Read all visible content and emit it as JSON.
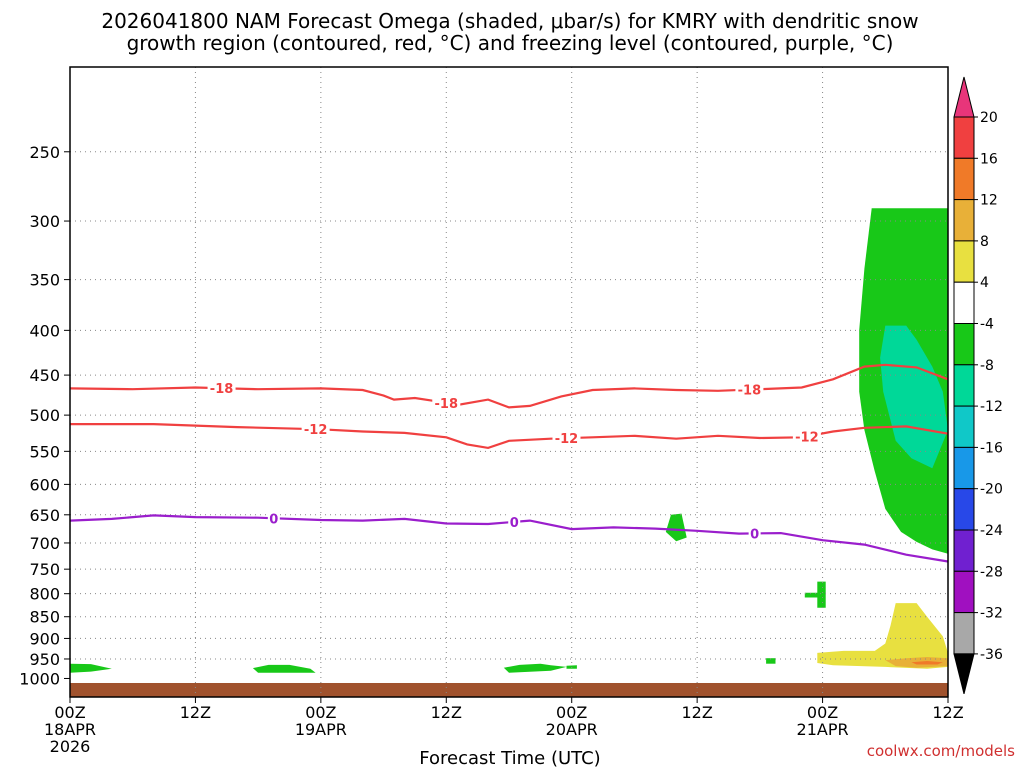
{
  "chart_data": {
    "type": "time-height-contour",
    "title_line1": "2026041800 NAM Forecast Omega (shaded, μbar/s) for KMRY with dendritic snow",
    "title_line2": "growth region (contoured, red, °C) and freezing level (contoured, purple, °C)",
    "xlabel": "Forecast Time (UTC)",
    "credit": "coolwx.com/models",
    "x_range_hours": [
      0,
      84
    ],
    "y_range_hpa": [
      1050,
      200
    ],
    "y_ticks": [
      250,
      300,
      350,
      400,
      450,
      500,
      550,
      600,
      650,
      700,
      750,
      800,
      850,
      900,
      950,
      1000
    ],
    "x_ticks": [
      {
        "hour": 0,
        "l1": "00Z",
        "l2": "18APR",
        "l3": "2026"
      },
      {
        "hour": 12,
        "l1": "12Z",
        "l2": "",
        "l3": ""
      },
      {
        "hour": 24,
        "l1": "00Z",
        "l2": "19APR",
        "l3": ""
      },
      {
        "hour": 36,
        "l1": "12Z",
        "l2": "",
        "l3": ""
      },
      {
        "hour": 48,
        "l1": "00Z",
        "l2": "20APR",
        "l3": ""
      },
      {
        "hour": 60,
        "l1": "12Z",
        "l2": "",
        "l3": ""
      },
      {
        "hour": 72,
        "l1": "00Z",
        "l2": "21APR",
        "l3": ""
      },
      {
        "hour": 84,
        "l1": "12Z",
        "l2": "",
        "l3": ""
      }
    ],
    "terrain": {
      "surface_hpa": 1012,
      "color": "#a0522d"
    },
    "colorbar": {
      "labels": [
        "20",
        "16",
        "12",
        "8",
        "4",
        "-4",
        "-8",
        "-12",
        "-16",
        "-20",
        "-24",
        "-28",
        "-32",
        "-36"
      ],
      "colors": [
        "#e8357a",
        "#f04040",
        "#f07a28",
        "#e8b038",
        "#e8e040",
        "#ffffff",
        "#18c818",
        "#00d898",
        "#10c8c8",
        "#1898e8",
        "#2848e8",
        "#7020d0",
        "#a010c0",
        "#a8a8a8",
        "#000000"
      ]
    },
    "series": [
      {
        "name": "-18 isotherm",
        "color": "#f04040",
        "label": "-18",
        "points": [
          [
            0,
            466
          ],
          [
            6,
            467
          ],
          [
            12,
            465
          ],
          [
            18,
            467
          ],
          [
            24,
            466
          ],
          [
            28,
            468
          ],
          [
            30,
            475
          ],
          [
            31,
            480
          ],
          [
            33,
            478
          ],
          [
            35,
            482
          ],
          [
            37,
            487
          ],
          [
            40,
            480
          ],
          [
            42,
            490
          ],
          [
            44,
            488
          ],
          [
            47,
            476
          ],
          [
            50,
            468
          ],
          [
            54,
            466
          ],
          [
            58,
            468
          ],
          [
            62,
            469
          ],
          [
            66,
            467
          ],
          [
            70,
            465
          ],
          [
            73,
            455
          ],
          [
            76,
            440
          ],
          [
            78,
            438
          ],
          [
            81,
            441
          ],
          [
            84,
            455
          ]
        ],
        "label_hours": [
          14.5,
          36,
          65
        ]
      },
      {
        "name": "-12 isotherm",
        "color": "#f04040",
        "label": "-12",
        "points": [
          [
            0,
            512
          ],
          [
            8,
            512
          ],
          [
            16,
            516
          ],
          [
            24,
            519
          ],
          [
            28,
            522
          ],
          [
            32,
            524
          ],
          [
            36,
            530
          ],
          [
            38,
            540
          ],
          [
            40,
            545
          ],
          [
            42,
            535
          ],
          [
            46,
            532
          ],
          [
            50,
            530
          ],
          [
            54,
            528
          ],
          [
            58,
            532
          ],
          [
            62,
            528
          ],
          [
            66,
            531
          ],
          [
            70,
            530
          ],
          [
            73,
            522
          ],
          [
            76,
            517
          ],
          [
            80,
            515
          ],
          [
            84,
            525
          ]
        ],
        "label_hours": [
          23.5,
          47.5,
          70.5
        ]
      },
      {
        "name": "0 freezing level",
        "color": "#9a1ecc",
        "label": "0",
        "points": [
          [
            0,
            660
          ],
          [
            4,
            657
          ],
          [
            8,
            651
          ],
          [
            12,
            654
          ],
          [
            18,
            655
          ],
          [
            24,
            659
          ],
          [
            28,
            660
          ],
          [
            32,
            657
          ],
          [
            36,
            665
          ],
          [
            40,
            666
          ],
          [
            44,
            660
          ],
          [
            48,
            675
          ],
          [
            52,
            672
          ],
          [
            56,
            674
          ],
          [
            60,
            678
          ],
          [
            64,
            683
          ],
          [
            68,
            682
          ],
          [
            72,
            695
          ],
          [
            76,
            703
          ],
          [
            80,
            722
          ],
          [
            84,
            735
          ]
        ],
        "label_hours": [
          19.5,
          42.5,
          65.5
        ]
      }
    ],
    "omega_regions": [
      {
        "value": -6,
        "color": "#18c818",
        "points": [
          [
            76.7,
            290
          ],
          [
            78.8,
            290
          ],
          [
            80.8,
            290
          ],
          [
            82.9,
            290
          ],
          [
            84,
            290
          ],
          [
            84,
            720
          ],
          [
            82.5,
            712
          ],
          [
            81,
            698
          ],
          [
            79.5,
            680
          ],
          [
            78,
            640
          ],
          [
            77,
            580
          ],
          [
            76,
            520
          ],
          [
            75.5,
            470
          ],
          [
            75.5,
            400
          ],
          [
            76,
            340
          ]
        ]
      },
      {
        "value": -10,
        "color": "#00d898",
        "points": [
          [
            78,
            395
          ],
          [
            80,
            395
          ],
          [
            81,
            410
          ],
          [
            82.5,
            440
          ],
          [
            83.5,
            470
          ],
          [
            84,
            520
          ],
          [
            82.5,
            575
          ],
          [
            80.5,
            560
          ],
          [
            79,
            535
          ],
          [
            77.8,
            470
          ],
          [
            77.5,
            430
          ]
        ]
      },
      {
        "value": -6,
        "color": "#18c818",
        "points": [
          [
            57.5,
            650
          ],
          [
            58.5,
            648
          ],
          [
            59,
            690
          ],
          [
            58,
            697
          ],
          [
            57,
            680
          ]
        ]
      },
      {
        "value": -6,
        "color": "#18c818",
        "points": [
          [
            71.5,
            775
          ],
          [
            72.3,
            775
          ],
          [
            72.3,
            830
          ],
          [
            71.5,
            830
          ],
          [
            71.5,
            808
          ],
          [
            70.3,
            808
          ],
          [
            70.3,
            798
          ],
          [
            71.5,
            798
          ]
        ]
      },
      {
        "value": -6,
        "color": "#18c818",
        "points": [
          [
            66.6,
            948
          ],
          [
            67.5,
            948
          ],
          [
            67.5,
            962
          ],
          [
            66.6,
            962
          ]
        ]
      },
      {
        "value": -6,
        "color": "#18c818",
        "points": [
          [
            0,
            962
          ],
          [
            2,
            963
          ],
          [
            4,
            975
          ],
          [
            2,
            982
          ],
          [
            0,
            985
          ]
        ]
      },
      {
        "value": -6,
        "color": "#18c818",
        "points": [
          [
            17.5,
            973
          ],
          [
            19,
            965
          ],
          [
            21,
            965
          ],
          [
            23,
            975
          ],
          [
            23.5,
            985
          ],
          [
            18,
            985
          ]
        ]
      },
      {
        "value": -6,
        "color": "#18c818",
        "points": [
          [
            41.5,
            972
          ],
          [
            43,
            965
          ],
          [
            45,
            962
          ],
          [
            46,
            966
          ],
          [
            47.5,
            970
          ],
          [
            46,
            980
          ],
          [
            42,
            985
          ]
        ]
      },
      {
        "value": -6,
        "color": "#18c818",
        "points": [
          [
            47.5,
            967
          ],
          [
            48.5,
            966
          ],
          [
            48.5,
            975
          ],
          [
            47.5,
            975
          ]
        ]
      },
      {
        "value": 6,
        "color": "#e8e040",
        "points": [
          [
            79,
            820
          ],
          [
            81,
            820
          ],
          [
            82,
            850
          ],
          [
            83.5,
            895
          ],
          [
            84,
            935
          ],
          [
            84,
            970
          ],
          [
            82,
            975
          ],
          [
            78,
            970
          ],
          [
            73,
            966
          ],
          [
            71.5,
            960
          ],
          [
            71.5,
            935
          ],
          [
            74,
            930
          ],
          [
            77,
            930
          ],
          [
            78,
            912
          ],
          [
            78.5,
            870
          ]
        ]
      },
      {
        "value": 10,
        "color": "#e8b038",
        "points": [
          [
            78,
            953
          ],
          [
            80,
            948
          ],
          [
            82,
            945
          ],
          [
            84,
            948
          ],
          [
            84,
            968
          ],
          [
            81,
            972
          ],
          [
            79,
            968
          ]
        ]
      },
      {
        "value": 14,
        "color": "#f07a28",
        "points": [
          [
            80.5,
            958
          ],
          [
            82,
            955
          ],
          [
            83.5,
            958
          ],
          [
            83,
            964
          ],
          [
            81,
            964
          ]
        ]
      }
    ]
  }
}
